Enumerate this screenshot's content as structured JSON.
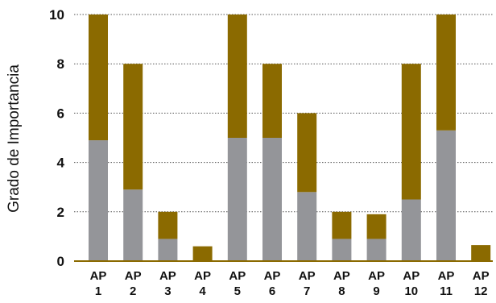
{
  "chart_data": {
    "type": "bar",
    "stacked": true,
    "title": "",
    "xlabel": "",
    "ylabel": "Grado de Importancia",
    "ylim": [
      0,
      10
    ],
    "yticks": [
      "0",
      "2",
      "4",
      "6",
      "8",
      "10"
    ],
    "grid": true,
    "legend": "none",
    "categories": [
      [
        "AP",
        "1"
      ],
      [
        "AP",
        "2"
      ],
      [
        "AP",
        "3"
      ],
      [
        "AP",
        "4"
      ],
      [
        "AP",
        "5"
      ],
      [
        "AP",
        "6"
      ],
      [
        "AP",
        "7"
      ],
      [
        "AP",
        "8"
      ],
      [
        "AP",
        "9"
      ],
      [
        "AP",
        "10"
      ],
      [
        "AP",
        "11"
      ],
      [
        "AP",
        "12"
      ]
    ],
    "series": [
      {
        "color": "#949599",
        "values": [
          4.9,
          2.9,
          0.9,
          0.0,
          5.0,
          5.0,
          2.8,
          0.9,
          0.9,
          2.5,
          5.3,
          0.0
        ]
      },
      {
        "color": "#8b6a00",
        "values": [
          5.1,
          5.1,
          1.1,
          0.6,
          5.0,
          3.0,
          3.2,
          1.1,
          1.0,
          5.5,
          4.7,
          0.65
        ]
      }
    ]
  }
}
